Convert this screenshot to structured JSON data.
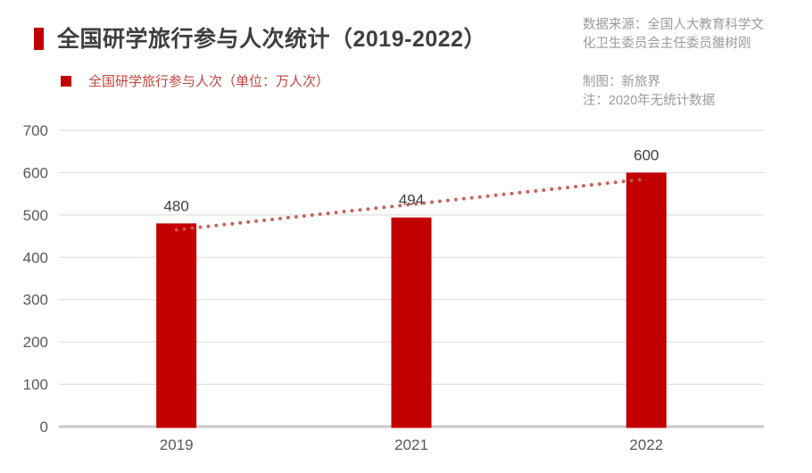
{
  "header": {
    "title": "全国研学旅行参与人次统计（2019-2022）",
    "legend": {
      "label": "全国研学旅行参与人次（单位：万人次）"
    },
    "source": {
      "line1": "数据来源：全国人大教育科学文",
      "line2": "化卫生委员会主任委员雒树刚",
      "credit": "制图：新旅界",
      "note": "注：2020年无统计数据"
    }
  },
  "colors": {
    "accent": "#c00000",
    "bar": "#c30000",
    "trendline": "#c65a55",
    "legend_text": "#bf4642",
    "title_text": "#3f3f3f",
    "axis_text": "#595959",
    "value_label_text": "#404040",
    "source_text": "#9a9a9a",
    "gridline": "#d9d9d9",
    "baseline": "#c8c8c8",
    "background": "#ffffff"
  },
  "chart_data": {
    "type": "bar",
    "title": "全国研学旅行参与人次统计（2019-2022）",
    "series_name": "全国研学旅行参与人次",
    "unit": "万人次",
    "categories": [
      "2019",
      "2021",
      "2022"
    ],
    "values": [
      480,
      494,
      600
    ],
    "data_labels": [
      480,
      494,
      600
    ],
    "ylim": [
      0,
      700
    ],
    "yticks": [
      0,
      100,
      200,
      300,
      400,
      500,
      600,
      700
    ],
    "grid": "horizontal",
    "legend_position": "top-left",
    "trendline": {
      "type": "linear",
      "style": "dotted",
      "start_value": 465,
      "end_value": 585
    }
  }
}
